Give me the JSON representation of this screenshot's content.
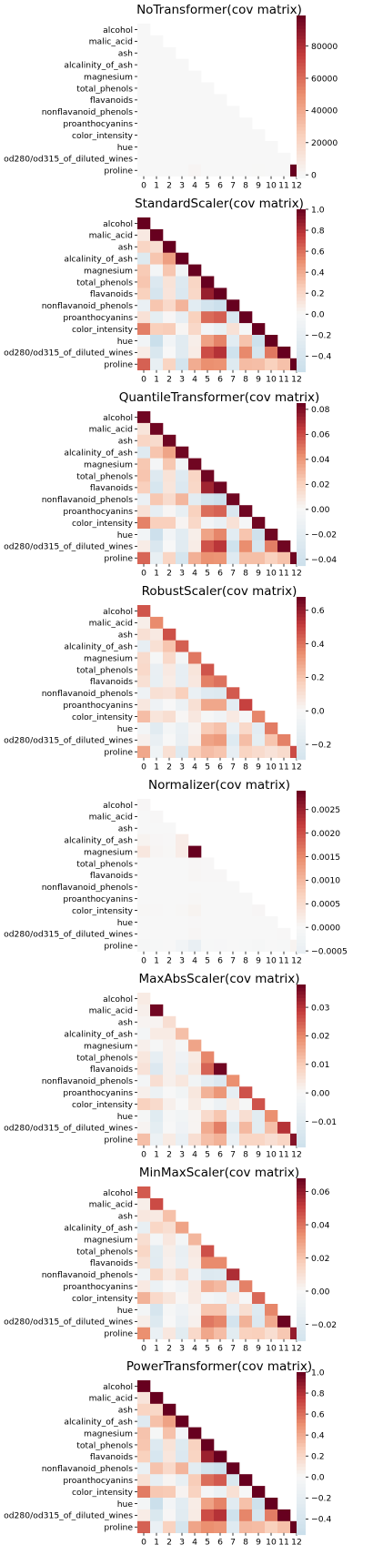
{
  "rows": [
    "alcohol",
    "malic_acid",
    "ash",
    "alcalinity_of_ash",
    "magnesium",
    "total_phenols",
    "flavanoids",
    "nonflavanoid_phenols",
    "proanthocyanins",
    "color_intensity",
    "hue",
    "od280/od315_of_diluted_wines",
    "proline"
  ],
  "cols": [
    "0",
    "1",
    "2",
    "3",
    "4",
    "5",
    "6",
    "7",
    "8",
    "9",
    "10",
    "11",
    "12"
  ],
  "colormap": {
    "name": "RdBu_r",
    "low": "#a7cce2",
    "mid": "#f7f7f7",
    "high": "#67001f"
  },
  "chart_data": [
    {
      "type": "heatmap",
      "title": "NoTransformer(cov matrix)",
      "vmin": -2000,
      "vmax": 99000,
      "colorbar_ticks": [
        0,
        20000,
        40000,
        60000,
        80000
      ],
      "colorbar_labels": [
        "0",
        "20000",
        "40000",
        "60000",
        "80000"
      ],
      "mask": "upper-triangle",
      "values": [
        [
          0.66
        ],
        [
          0.1,
          1.25
        ],
        [
          0.05,
          0.05,
          0.08
        ],
        [
          -0.8,
          1.1,
          0.4,
          11.2
        ],
        [
          3.1,
          -0.7,
          1.1,
          -4.7,
          204
        ],
        [
          0.15,
          -0.23,
          0.02,
          -0.67,
          2.0,
          0.39
        ],
        [
          0.19,
          -0.46,
          0.03,
          -1.17,
          2.9,
          0.54,
          1.0
        ],
        [
          -0.02,
          0.04,
          0.01,
          0.15,
          -0.46,
          -0.03,
          -0.07,
          0.02
        ],
        [
          0.06,
          -0.14,
          0.0,
          -0.38,
          1.9,
          0.22,
          0.37,
          -0.03,
          0.33
        ],
        [
          1.03,
          0.64,
          0.16,
          0.15,
          6.6,
          -0.08,
          -0.4,
          0.04,
          -0.03,
          5.37
        ],
        [
          -0.01,
          -0.14,
          -0.0,
          -0.21,
          0.18,
          0.06,
          0.12,
          -0.01,
          0.04,
          -0.28,
          0.05
        ],
        [
          0.04,
          -0.29,
          0.0,
          -0.66,
          0.67,
          0.31,
          0.56,
          -0.04,
          0.21,
          -0.71,
          0.09,
          0.5
        ],
        [
          164,
          -67,
          19,
          -464,
          1769,
          98,
          156,
          -12,
          60,
          231,
          17,
          70,
          99166
        ]
      ]
    },
    {
      "type": "heatmap",
      "title": "StandardScaler(cov matrix)",
      "vmin": -0.55,
      "vmax": 1.0,
      "colorbar_ticks": [
        -0.4,
        -0.2,
        0.0,
        0.2,
        0.4,
        0.6,
        0.8,
        1.0
      ],
      "colorbar_labels": [
        "−0.4",
        "−0.2",
        "0.0",
        "0.2",
        "0.4",
        "0.6",
        "0.8",
        "1.0"
      ],
      "mask": "upper-triangle",
      "values": [
        [
          1.0
        ],
        [
          0.09,
          1.0
        ],
        [
          0.21,
          0.16,
          1.0
        ],
        [
          -0.31,
          0.29,
          0.44,
          1.0
        ],
        [
          0.27,
          -0.05,
          0.29,
          -0.08,
          1.0
        ],
        [
          0.29,
          -0.34,
          0.13,
          -0.32,
          0.21,
          1.0
        ],
        [
          0.24,
          -0.41,
          0.12,
          -0.35,
          0.2,
          0.87,
          1.0
        ],
        [
          -0.16,
          0.29,
          0.19,
          0.36,
          -0.26,
          -0.45,
          -0.54,
          1.0
        ],
        [
          0.14,
          -0.22,
          0.01,
          -0.2,
          0.24,
          0.61,
          0.65,
          -0.37,
          1.0
        ],
        [
          0.55,
          0.25,
          0.26,
          0.02,
          0.2,
          -0.06,
          -0.17,
          0.14,
          -0.03,
          1.0
        ],
        [
          -0.07,
          -0.56,
          -0.07,
          -0.27,
          0.06,
          0.43,
          0.54,
          -0.26,
          0.3,
          -0.52,
          1.0
        ],
        [
          0.07,
          -0.37,
          0.0,
          -0.28,
          0.07,
          0.7,
          0.79,
          -0.5,
          0.52,
          -0.43,
          0.57,
          1.0
        ],
        [
          0.64,
          -0.19,
          0.22,
          -0.44,
          0.39,
          0.5,
          0.49,
          -0.31,
          0.33,
          0.32,
          0.24,
          0.31,
          1.0
        ]
      ]
    },
    {
      "type": "heatmap",
      "title": "QuantileTransformer(cov matrix)",
      "vmin": -0.045,
      "vmax": 0.085,
      "colorbar_ticks": [
        -0.04,
        -0.02,
        0.0,
        0.02,
        0.04,
        0.06,
        0.08
      ],
      "colorbar_labels": [
        "−0.04",
        "−0.02",
        "0.00",
        "0.02",
        "0.04",
        "0.06",
        "0.08"
      ],
      "mask": "upper-triangle",
      "values": [
        [
          0.083
        ],
        [
          0.01,
          0.083
        ],
        [
          0.018,
          0.015,
          0.083
        ],
        [
          -0.026,
          0.025,
          0.036,
          0.083
        ],
        [
          0.024,
          -0.003,
          0.024,
          -0.006,
          0.083
        ],
        [
          0.025,
          -0.027,
          0.011,
          -0.026,
          0.018,
          0.083
        ],
        [
          0.021,
          -0.034,
          0.01,
          -0.029,
          0.017,
          0.072,
          0.083
        ],
        [
          -0.013,
          0.024,
          0.015,
          0.03,
          -0.021,
          -0.038,
          -0.045,
          0.083
        ],
        [
          0.012,
          -0.018,
          0.001,
          -0.016,
          0.02,
          0.051,
          0.054,
          -0.031,
          0.083
        ],
        [
          0.046,
          0.021,
          0.021,
          0.002,
          0.017,
          -0.005,
          -0.014,
          0.012,
          -0.002,
          0.083
        ],
        [
          -0.006,
          -0.045,
          -0.006,
          -0.022,
          0.005,
          0.036,
          0.045,
          -0.022,
          0.025,
          -0.043,
          0.083
        ],
        [
          0.006,
          -0.031,
          0.0,
          -0.023,
          0.006,
          0.058,
          0.066,
          -0.042,
          0.043,
          -0.036,
          0.047,
          0.083
        ],
        [
          0.053,
          -0.016,
          0.018,
          -0.036,
          0.032,
          0.042,
          0.041,
          -0.026,
          0.027,
          0.027,
          0.02,
          0.026,
          0.083
        ]
      ]
    },
    {
      "type": "heatmap",
      "title": "RobustScaler(cov matrix)",
      "vmin": -0.29,
      "vmax": 0.68,
      "colorbar_ticks": [
        -0.2,
        0.0,
        0.2,
        0.4,
        0.6
      ],
      "colorbar_labels": [
        "−0.2",
        "0.0",
        "0.2",
        "0.4",
        "0.6"
      ],
      "mask": "upper-triangle",
      "values": [
        [
          0.46
        ],
        [
          0.04,
          0.35
        ],
        [
          0.1,
          0.06,
          0.47
        ],
        [
          -0.14,
          0.1,
          0.2,
          0.44
        ],
        [
          0.12,
          -0.02,
          0.13,
          -0.03,
          0.39
        ],
        [
          0.13,
          -0.12,
          0.06,
          -0.14,
          0.08,
          0.46
        ],
        [
          0.1,
          -0.13,
          0.05,
          -0.14,
          0.07,
          0.37,
          0.4
        ],
        [
          -0.08,
          0.1,
          0.09,
          0.17,
          -0.11,
          -0.2,
          -0.22,
          0.45
        ],
        [
          0.07,
          -0.08,
          0.0,
          -0.09,
          0.1,
          0.28,
          0.28,
          -0.17,
          0.5
        ],
        [
          0.22,
          0.08,
          0.11,
          0.01,
          0.07,
          -0.02,
          -0.06,
          0.06,
          -0.01,
          0.36
        ],
        [
          -0.03,
          -0.19,
          -0.03,
          -0.11,
          0.02,
          0.18,
          0.21,
          -0.11,
          0.13,
          -0.17,
          0.38
        ],
        [
          0.03,
          -0.12,
          0.0,
          -0.12,
          0.03,
          0.29,
          0.31,
          -0.21,
          0.22,
          -0.15,
          0.2,
          0.37
        ],
        [
          0.28,
          -0.07,
          0.1,
          -0.2,
          0.16,
          0.22,
          0.2,
          -0.14,
          0.15,
          0.12,
          0.09,
          0.12,
          0.48
        ]
      ]
    },
    {
      "type": "heatmap",
      "title": "Normalizer(cov matrix)",
      "vmin": -0.00055,
      "vmax": 0.0029,
      "colorbar_ticks": [
        -0.0005,
        0.0,
        0.0005,
        0.001,
        0.0015,
        0.002,
        0.0025
      ],
      "colorbar_labels": [
        "−0.0005",
        "0.0000",
        "0.0005",
        "0.0010",
        "0.0015",
        "0.0020",
        "0.0025"
      ],
      "mask": "upper-triangle",
      "values": [
        [
          3e-05
        ],
        [
          0.0,
          1e-05
        ],
        [
          0.0,
          0.0,
          0.0
        ],
        [
          8e-05,
          3e-05,
          1e-05,
          0.0002
        ],
        [
          0.0003,
          5e-05,
          2e-05,
          0.0002,
          0.0029
        ],
        [
          0.0,
          0.0,
          0.0,
          0.0,
          3e-05,
          1e-05
        ],
        [
          0.0,
          0.0,
          0.0,
          0.0,
          4e-05,
          1e-05,
          1e-05
        ],
        [
          0.0,
          0.0,
          0.0,
          0.0,
          0.0,
          0.0,
          0.0,
          0.0
        ],
        [
          0.0,
          0.0,
          0.0,
          0.0,
          2e-05,
          0.0,
          0.0,
          0.0,
          0.0
        ],
        [
          2e-05,
          1e-05,
          0.0,
          2e-05,
          8e-05,
          0.0,
          0.0,
          0.0,
          0.0,
          3e-05
        ],
        [
          0.0,
          0.0,
          0.0,
          0.0,
          1e-05,
          0.0,
          0.0,
          0.0,
          0.0,
          0.0,
          0.0
        ],
        [
          0.0,
          0.0,
          0.0,
          0.0,
          4e-05,
          0.0,
          0.0,
          0.0,
          0.0,
          0.0,
          0.0,
          1e-05
        ],
        [
          -8e-05,
          -3e-05,
          -1e-05,
          -0.0002,
          -0.00052,
          -3e-05,
          -4e-05,
          0.0,
          -2e-05,
          -7e-05,
          -1e-05,
          -3e-05,
          8e-05
        ]
      ]
    },
    {
      "type": "heatmap",
      "title": "MaxAbsScaler(cov matrix)",
      "vmin": -0.019,
      "vmax": 0.038,
      "colorbar_ticks": [
        -0.01,
        0.0,
        0.01,
        0.02,
        0.03
      ],
      "colorbar_labels": [
        "−0.01",
        "0.00",
        "0.01",
        "0.02",
        "0.03"
      ],
      "mask": "upper-triangle",
      "values": [
        [
          0.003
        ],
        [
          0.002,
          0.037
        ],
        [
          0.001,
          0.001,
          0.006
        ],
        [
          -0.002,
          0.003,
          0.003,
          0.012
        ],
        [
          0.002,
          -0.001,
          0.002,
          -0.001,
          0.016
        ],
        [
          0.004,
          -0.008,
          0.002,
          -0.004,
          0.003,
          0.02
        ],
        [
          0.005,
          -0.013,
          0.002,
          -0.006,
          0.004,
          0.024,
          0.037
        ],
        [
          -0.002,
          0.006,
          0.002,
          0.004,
          -0.003,
          -0.009,
          -0.013,
          0.019
        ],
        [
          0.002,
          -0.005,
          0.0,
          -0.003,
          0.004,
          0.014,
          0.018,
          -0.008,
          0.026
        ],
        [
          0.009,
          0.007,
          0.002,
          0.0,
          0.003,
          -0.001,
          -0.005,
          0.003,
          -0.001,
          0.026
        ],
        [
          -0.001,
          -0.011,
          -0.001,
          -0.003,
          0.001,
          0.007,
          0.011,
          -0.004,
          0.006,
          -0.01,
          0.019
        ],
        [
          0.001,
          -0.009,
          0.0,
          -0.004,
          0.001,
          0.015,
          0.021,
          -0.01,
          0.013,
          -0.01,
          0.012,
          0.03
        ],
        [
          0.012,
          -0.005,
          0.003,
          -0.006,
          0.006,
          0.012,
          0.014,
          -0.006,
          0.008,
          0.008,
          0.006,
          0.008,
          0.035
        ]
      ]
    },
    {
      "type": "heatmap",
      "title": "MinMaxScaler(cov matrix)",
      "vmin": -0.03,
      "vmax": 0.068,
      "colorbar_ticks": [
        -0.02,
        0.0,
        0.02,
        0.04,
        0.06
      ],
      "colorbar_labels": [
        "−0.02",
        "0.00",
        "0.02",
        "0.04",
        "0.06"
      ],
      "mask": "upper-triangle",
      "values": [
        [
          0.045
        ],
        [
          0.004,
          0.048
        ],
        [
          0.007,
          0.006,
          0.021
        ],
        [
          -0.013,
          0.014,
          0.011,
          0.029
        ],
        [
          0.011,
          -0.003,
          0.007,
          -0.003,
          0.024
        ],
        [
          0.014,
          -0.018,
          0.004,
          -0.012,
          0.006,
          0.047
        ],
        [
          0.01,
          -0.019,
          0.003,
          -0.011,
          0.005,
          0.035,
          0.035
        ],
        [
          -0.007,
          0.015,
          0.006,
          0.013,
          -0.008,
          -0.022,
          -0.021,
          0.055
        ],
        [
          0.006,
          -0.01,
          0.0,
          -0.006,
          0.006,
          0.026,
          0.023,
          -0.016,
          0.037
        ],
        [
          0.025,
          0.013,
          0.008,
          0.001,
          0.006,
          -0.003,
          -0.007,
          0.007,
          -0.001,
          0.042
        ],
        [
          -0.003,
          -0.028,
          -0.002,
          -0.008,
          0.002,
          0.02,
          0.02,
          -0.012,
          0.011,
          -0.021,
          0.036
        ],
        [
          0.004,
          -0.022,
          0.0,
          -0.011,
          0.003,
          0.039,
          0.036,
          -0.03,
          0.025,
          -0.023,
          0.027,
          0.067
        ],
        [
          0.034,
          -0.011,
          0.007,
          -0.018,
          0.013,
          0.028,
          0.022,
          -0.018,
          0.016,
          0.017,
          0.011,
          0.019,
          0.06
        ]
      ]
    },
    {
      "type": "heatmap",
      "title": "PowerTransformer(cov matrix)",
      "vmin": -0.55,
      "vmax": 1.0,
      "colorbar_ticks": [
        -0.4,
        -0.2,
        0.0,
        0.2,
        0.4,
        0.6,
        0.8,
        1.0
      ],
      "colorbar_labels": [
        "−0.4",
        "−0.2",
        "0.0",
        "0.2",
        "0.4",
        "0.6",
        "0.8",
        "1.0"
      ],
      "mask": "upper-triangle",
      "values": [
        [
          1.0
        ],
        [
          0.12,
          1.0
        ],
        [
          0.22,
          0.2,
          1.0
        ],
        [
          -0.3,
          0.31,
          0.43,
          1.0
        ],
        [
          0.3,
          -0.03,
          0.31,
          -0.06,
          1.0
        ],
        [
          0.29,
          -0.33,
          0.13,
          -0.31,
          0.23,
          1.0
        ],
        [
          0.24,
          -0.4,
          0.11,
          -0.34,
          0.22,
          0.86,
          1.0
        ],
        [
          -0.16,
          0.3,
          0.19,
          0.36,
          -0.25,
          -0.45,
          -0.53,
          1.0
        ],
        [
          0.15,
          -0.2,
          0.02,
          -0.19,
          0.26,
          0.6,
          0.66,
          -0.36,
          1.0
        ],
        [
          0.56,
          0.28,
          0.27,
          0.03,
          0.23,
          -0.04,
          -0.15,
          0.15,
          -0.01,
          1.0
        ],
        [
          -0.05,
          -0.55,
          -0.06,
          -0.26,
          0.07,
          0.43,
          0.54,
          -0.27,
          0.31,
          -0.51,
          1.0
        ],
        [
          0.07,
          -0.36,
          0.01,
          -0.27,
          0.08,
          0.7,
          0.79,
          -0.5,
          0.53,
          -0.42,
          0.56,
          1.0
        ],
        [
          0.64,
          -0.16,
          0.23,
          -0.42,
          0.42,
          0.5,
          0.48,
          -0.3,
          0.34,
          0.33,
          0.24,
          0.31,
          1.0
        ]
      ]
    }
  ]
}
